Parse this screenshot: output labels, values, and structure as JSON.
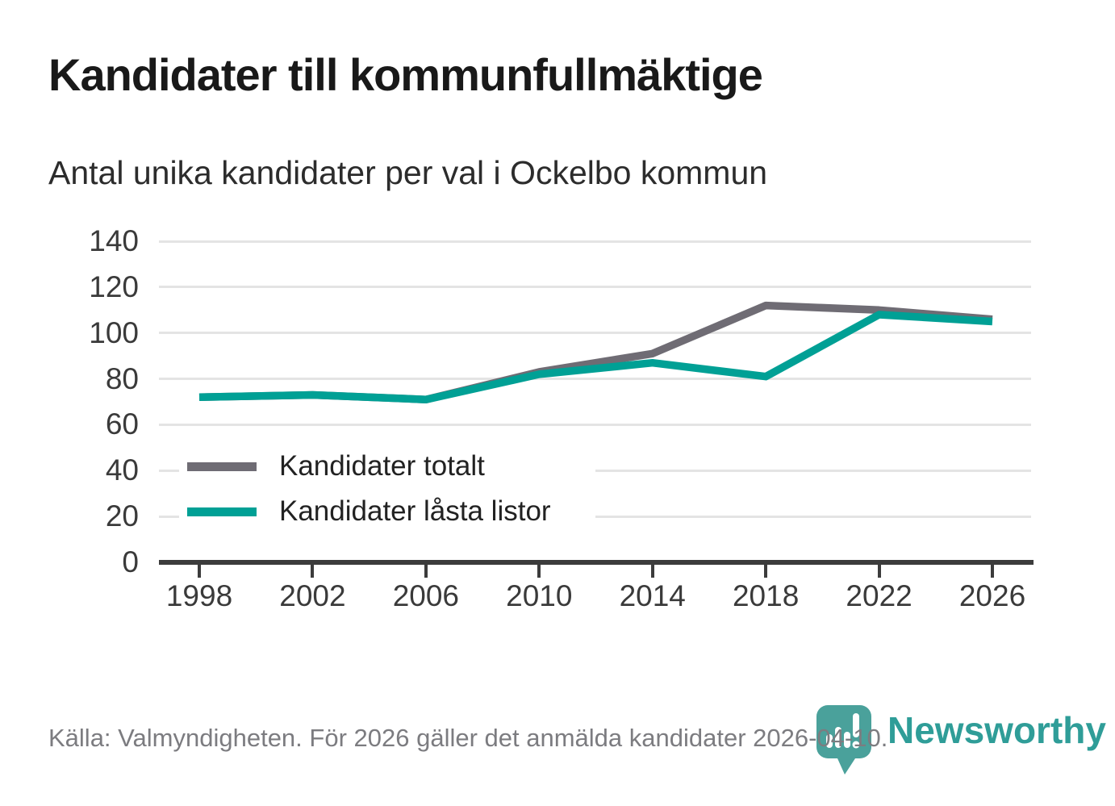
{
  "header": {
    "title": "Kandidater till kommunfullmäktige",
    "subtitle": "Antal unika kandidater per val i Ockelbo kommun"
  },
  "chart_data": {
    "type": "line",
    "title": "Kandidater till kommunfullmäktige",
    "subtitle": "Antal unika kandidater per val i Ockelbo kommun",
    "categories": [
      "1998",
      "2002",
      "2006",
      "2010",
      "2014",
      "2018",
      "2022",
      "2026"
    ],
    "series": [
      {
        "name": "Kandidater totalt",
        "color": "#6f6c74",
        "values": [
          72,
          73,
          71,
          83,
          91,
          112,
          110,
          106
        ]
      },
      {
        "name": "Kandidater låsta listor",
        "color": "#00a095",
        "values": [
          72,
          73,
          71,
          82,
          87,
          81,
          108,
          105
        ]
      }
    ],
    "ylim": [
      0,
      140
    ],
    "yticks": [
      0,
      20,
      40,
      60,
      80,
      100,
      120,
      140
    ],
    "grid": "horizontal",
    "legend_position": "inside-left-bottom",
    "axis_color": "#3c3c3c",
    "gridline_color": "#e4e4e4"
  },
  "footer": {
    "source": "Källa: Valmyndigheten. För 2026 gäller det anmälda kandidater 2026-04-10.",
    "logo_text": "Newsworthy",
    "logo_color": "#2f9d98",
    "logo_badge_color": "#4aa19b"
  }
}
